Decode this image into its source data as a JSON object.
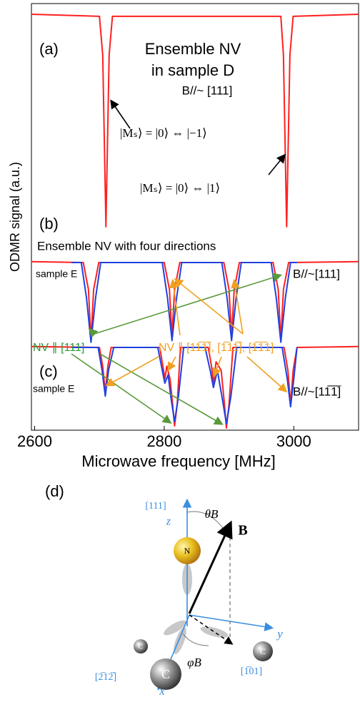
{
  "chart_data": {
    "type": "line",
    "xlabel": "Microwave frequency [MHz]",
    "ylabel": "ODMR signal (a.u.)",
    "xlim": [
      2595,
      3100
    ],
    "xticks": [
      2600,
      2800,
      3000
    ],
    "ylim": [
      0,
      100
    ],
    "series": [
      {
        "color": "#ff2020",
        "x": [
          2595,
          2700,
          2705,
          2710,
          2715,
          2720,
          2980,
          2984,
          2989,
          2994,
          2999,
          3100
        ],
        "values": [
          97.5,
          97,
          88,
          47.7,
          88,
          97,
          97,
          88,
          47.7,
          88,
          97,
          97.5
        ]
      },
      {
        "color": "#ff2020",
        "x": [
          2595,
          2675,
          2683,
          2687,
          2691,
          2699,
          2800,
          2808,
          2812,
          2816,
          2824,
          2892,
          2900,
          2904,
          2908,
          2916,
          2968,
          2976,
          2980,
          2984,
          2992,
          3100
        ],
        "values": [
          39.5,
          39.3,
          33,
          21,
          33,
          39.3,
          39.3,
          33,
          22,
          33,
          39.3,
          39.3,
          33,
          22,
          33,
          39.3,
          39.3,
          33,
          21,
          33,
          39.3,
          39.5
        ]
      },
      {
        "color": "#2040e0",
        "x": [
          2657,
          2672,
          2680,
          2687,
          2694,
          2702,
          2797,
          2805,
          2812,
          2819,
          2827,
          2889,
          2897,
          2904,
          2911,
          2919,
          2965,
          2973,
          2980,
          2987,
          2995,
          3005
        ],
        "values": [
          39.3,
          39.3,
          31,
          20.6,
          31,
          39.3,
          39.3,
          31,
          21,
          31,
          39.3,
          39.3,
          31,
          21,
          31,
          39.3,
          39.3,
          31,
          20.6,
          31,
          39.3,
          39.3
        ]
      },
      {
        "color": "#ff2020",
        "x": [
          2595,
          2700,
          2705,
          2709,
          2713,
          2718,
          2793,
          2798,
          2801,
          2804,
          2809,
          2813,
          2816,
          2820,
          2825,
          2868,
          2873,
          2876,
          2880,
          2888,
          2893,
          2896,
          2900,
          2906,
          2985,
          2991,
          2995,
          2999,
          3005,
          3100
        ],
        "values": [
          19.6,
          19.4,
          15,
          9,
          15,
          19.4,
          19.4,
          15,
          12,
          15,
          12,
          6,
          1,
          6,
          19.4,
          19.4,
          15,
          11,
          16,
          14,
          6,
          0.5,
          6,
          19.4,
          19.4,
          14,
          6,
          14,
          19.4,
          19.6
        ]
      },
      {
        "color": "#2040e0",
        "x": [
          2657,
          2698,
          2704,
          2709,
          2714,
          2722,
          2790,
          2797,
          2801,
          2806,
          2810,
          2816,
          2822,
          2830,
          2863,
          2871,
          2876,
          2882,
          2889,
          2896,
          2903,
          2912,
          2982,
          2990,
          2995,
          3000,
          3005
        ],
        "values": [
          19.4,
          19.4,
          14,
          8,
          14,
          19.4,
          19.4,
          14,
          11,
          13,
          8,
          2,
          8,
          19.4,
          19.4,
          14,
          10,
          14,
          8,
          1.5,
          8,
          19.4,
          19.4,
          12,
          5.5,
          12,
          19.4
        ]
      }
    ],
    "annotations": [
      "(a)",
      "Ensemble NV",
      "in sample D",
      "B//~ [111]",
      "|Mₛ⟩ = |0⟩ ⇔ |−1⟩",
      "|Mₛ⟩ = |0⟩ ⇔ |1⟩",
      "(b)",
      "Ensemble NV with four directions",
      "sample E",
      "B//~[111]",
      "NV ∥ [111]",
      "NV ∥ [11̅1̅], [1̅11̅], [1̅1̅1]",
      "(c)",
      "sample E",
      "B//~[11̅1̅]"
    ]
  },
  "diagram": {
    "label": "(d)",
    "labels": [
      "[111]",
      "z",
      "θB",
      "B",
      "N",
      "C",
      "C",
      "C",
      "y",
      "x",
      "φB",
      "[2̅12̅]",
      "[1̅01]"
    ]
  }
}
